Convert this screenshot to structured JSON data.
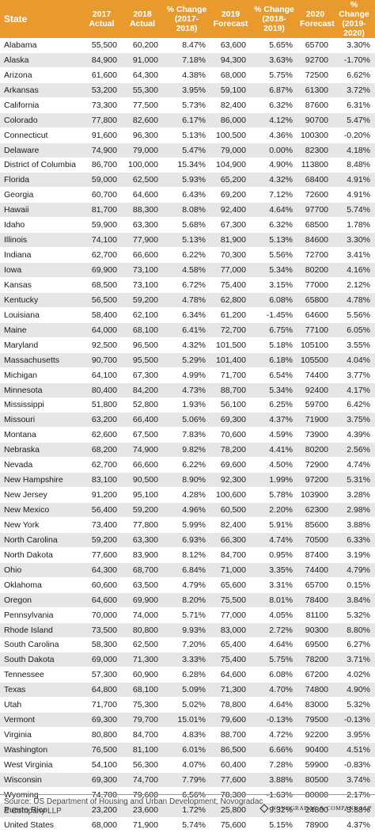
{
  "headers": {
    "state": "State",
    "actual_2017": "2017 Actual",
    "actual_2018": "2018 Actual",
    "change_2017_2018": "% Change (2017-2018)",
    "forecast_2019": "2019 Forecast",
    "change_2018_2019": "% Change (2018-2019)",
    "forecast_2020": "2020 Forecast",
    "change_2019_2020": "% Change (2019-2020)"
  },
  "rows": [
    [
      "Alabama",
      "55,500",
      "60,200",
      "8.47%",
      "63,600",
      "5.65%",
      "65700",
      "3.30%"
    ],
    [
      "Alaska",
      "84,900",
      "91,000",
      "7.18%",
      "94,300",
      "3.63%",
      "92700",
      "-1.70%"
    ],
    [
      "Arizona",
      "61,600",
      "64,300",
      "4.38%",
      "68,000",
      "5.75%",
      "72500",
      "6.62%"
    ],
    [
      "Arkansas",
      "53,200",
      "55,300",
      "3.95%",
      "59,100",
      "6.87%",
      "61300",
      "3.72%"
    ],
    [
      "California",
      "73,300",
      "77,500",
      "5.73%",
      "82,400",
      "6.32%",
      "87600",
      "6.31%"
    ],
    [
      "Colorado",
      "77,800",
      "82,600",
      "6.17%",
      "86,000",
      "4.12%",
      "90700",
      "5.47%"
    ],
    [
      "Connecticut",
      "91,600",
      "96,300",
      "5.13%",
      "100,500",
      "4.36%",
      "100300",
      "-0.20%"
    ],
    [
      "Delaware",
      "74,900",
      "79,000",
      "5.47%",
      "79,000",
      "0.00%",
      "82300",
      "4.18%"
    ],
    [
      "District of Columbia",
      "86,700",
      "100,000",
      "15.34%",
      "104,900",
      "4.90%",
      "113800",
      "8.48%"
    ],
    [
      "Florida",
      "59,000",
      "62,500",
      "5.93%",
      "65,200",
      "4.32%",
      "68400",
      "4.91%"
    ],
    [
      "Georgia",
      "60,700",
      "64,600",
      "6.43%",
      "69,200",
      "7.12%",
      "72600",
      "4.91%"
    ],
    [
      "Hawaii",
      "81,700",
      "88,300",
      "8.08%",
      "92,400",
      "4.64%",
      "97700",
      "5.74%"
    ],
    [
      "Idaho",
      "59,900",
      "63,300",
      "5.68%",
      "67,300",
      "6.32%",
      "68500",
      "1.78%"
    ],
    [
      "Illinois",
      "74,100",
      "77,900",
      "5.13%",
      "81,900",
      "5.13%",
      "84600",
      "3.30%"
    ],
    [
      "Indiana",
      "62,700",
      "66,600",
      "6.22%",
      "70,300",
      "5.56%",
      "72700",
      "3.41%"
    ],
    [
      "Iowa",
      "69,900",
      "73,100",
      "4.58%",
      "77,000",
      "5.34%",
      "80200",
      "4.16%"
    ],
    [
      "Kansas",
      "68,500",
      "73,100",
      "6.72%",
      "75,400",
      "3.15%",
      "77000",
      "2.12%"
    ],
    [
      "Kentucky",
      "56,500",
      "59,200",
      "4.78%",
      "62,800",
      "6.08%",
      "65800",
      "4.78%"
    ],
    [
      "Louisiana",
      "58,400",
      "62,100",
      "6.34%",
      "61,200",
      "-1.45%",
      "64600",
      "5.56%"
    ],
    [
      "Maine",
      "64,000",
      "68,100",
      "6.41%",
      "72,700",
      "6.75%",
      "77100",
      "6.05%"
    ],
    [
      "Maryland",
      "92,500",
      "96,500",
      "4.32%",
      "101,500",
      "5.18%",
      "105100",
      "3.55%"
    ],
    [
      "Massachusetts",
      "90,700",
      "95,500",
      "5.29%",
      "101,400",
      "6.18%",
      "105500",
      "4.04%"
    ],
    [
      "Michigan",
      "64,100",
      "67,300",
      "4.99%",
      "71,700",
      "6.54%",
      "74400",
      "3.77%"
    ],
    [
      "Minnesota",
      "80,400",
      "84,200",
      "4.73%",
      "88,700",
      "5.34%",
      "92400",
      "4.17%"
    ],
    [
      "Mississippi",
      "51,800",
      "52,800",
      "1.93%",
      "56,100",
      "6.25%",
      "59700",
      "6.42%"
    ],
    [
      "Missouri",
      "63,200",
      "66,400",
      "5.06%",
      "69,300",
      "4.37%",
      "71900",
      "3.75%"
    ],
    [
      "Montana",
      "62,600",
      "67,500",
      "7.83%",
      "70,600",
      "4.59%",
      "73900",
      "4.39%"
    ],
    [
      "Nebraska",
      "68,200",
      "74,900",
      "9.82%",
      "78,200",
      "4.41%",
      "80200",
      "2.56%"
    ],
    [
      "Nevada",
      "62,700",
      "66,600",
      "6.22%",
      "69,600",
      "4.50%",
      "72900",
      "4.74%"
    ],
    [
      "New Hampshire",
      "83,100",
      "90,500",
      "8.90%",
      "92,300",
      "1.99%",
      "97200",
      "5.31%"
    ],
    [
      "New Jersey",
      "91,200",
      "95,100",
      "4.28%",
      "100,600",
      "5.78%",
      "103900",
      "3.28%"
    ],
    [
      "New Mexico",
      "56,400",
      "59,200",
      "4.96%",
      "60,500",
      "2.20%",
      "62300",
      "2.98%"
    ],
    [
      "New York",
      "73,400",
      "77,800",
      "5.99%",
      "82,400",
      "5.91%",
      "85600",
      "3.88%"
    ],
    [
      "North Carolina",
      "59,200",
      "63,300",
      "6.93%",
      "66,300",
      "4.74%",
      "70500",
      "6.33%"
    ],
    [
      "North Dakota",
      "77,600",
      "83,900",
      "8.12%",
      "84,700",
      "0.95%",
      "87400",
      "3.19%"
    ],
    [
      "Ohio",
      "64,300",
      "68,700",
      "6.84%",
      "71,000",
      "3.35%",
      "74400",
      "4.79%"
    ],
    [
      "Oklahoma",
      "60,600",
      "63,500",
      "4.79%",
      "65,600",
      "3.31%",
      "65700",
      "0.15%"
    ],
    [
      "Oregon",
      "64,600",
      "69,900",
      "8.20%",
      "75,500",
      "8.01%",
      "78400",
      "3.84%"
    ],
    [
      "Pennsylvania",
      "70,000",
      "74,000",
      "5.71%",
      "77,000",
      "4.05%",
      "81100",
      "5.32%"
    ],
    [
      "Rhode Island",
      "73,500",
      "80,800",
      "9.93%",
      "83,000",
      "2.72%",
      "90300",
      "8.80%"
    ],
    [
      "South Carolina",
      "58,300",
      "62,500",
      "7.20%",
      "65,400",
      "4.64%",
      "69500",
      "6.27%"
    ],
    [
      "South Dakota",
      "69,000",
      "71,300",
      "3.33%",
      "75,400",
      "5.75%",
      "78200",
      "3.71%"
    ],
    [
      "Tennessee",
      "57,300",
      "60,900",
      "6.28%",
      "64,600",
      "6.08%",
      "67200",
      "4.02%"
    ],
    [
      "Texas",
      "64,800",
      "68,100",
      "5.09%",
      "71,300",
      "4.70%",
      "74800",
      "4.90%"
    ],
    [
      "Utah",
      "71,700",
      "75,300",
      "5.02%",
      "78,800",
      "4.64%",
      "83000",
      "5.32%"
    ],
    [
      "Vermont",
      "69,300",
      "79,700",
      "15.01%",
      "79,600",
      "-0.13%",
      "79500",
      "-0.13%"
    ],
    [
      "Virginia",
      "80,800",
      "84,700",
      "4.83%",
      "88,700",
      "4.72%",
      "92200",
      "3.95%"
    ],
    [
      "Washington",
      "76,500",
      "81,100",
      "6.01%",
      "86,500",
      "6.66%",
      "90400",
      "4.51%"
    ],
    [
      "West Virginia",
      "54,100",
      "56,300",
      "4.07%",
      "60,400",
      "7.28%",
      "59900",
      "-0.83%"
    ],
    [
      "Wisconsin",
      "69,300",
      "74,700",
      "7.79%",
      "77,600",
      "3.88%",
      "80500",
      "3.74%"
    ],
    [
      "Wyoming",
      "74,700",
      "79,600",
      "6.56%",
      "78,300",
      "-1.63%",
      "80000",
      "2.17%"
    ],
    [
      "Puerto Rico",
      "23,200",
      "23,600",
      "1.72%",
      "25,800",
      "9.32%",
      "24800",
      "-3.88%"
    ],
    [
      "United States",
      "68,000",
      "71,900",
      "5.74%",
      "75,600",
      "5.15%",
      "78900",
      "4.37%"
    ]
  ],
  "footer": {
    "source": "Source: US Department of Housing and Urban Development; Novogradac & Company LLP",
    "brand": "NOVOGRADAC & COMPANY LLP"
  },
  "colors": {
    "header_bg": "#e89a2c",
    "stripe": "#e6e6e6"
  }
}
